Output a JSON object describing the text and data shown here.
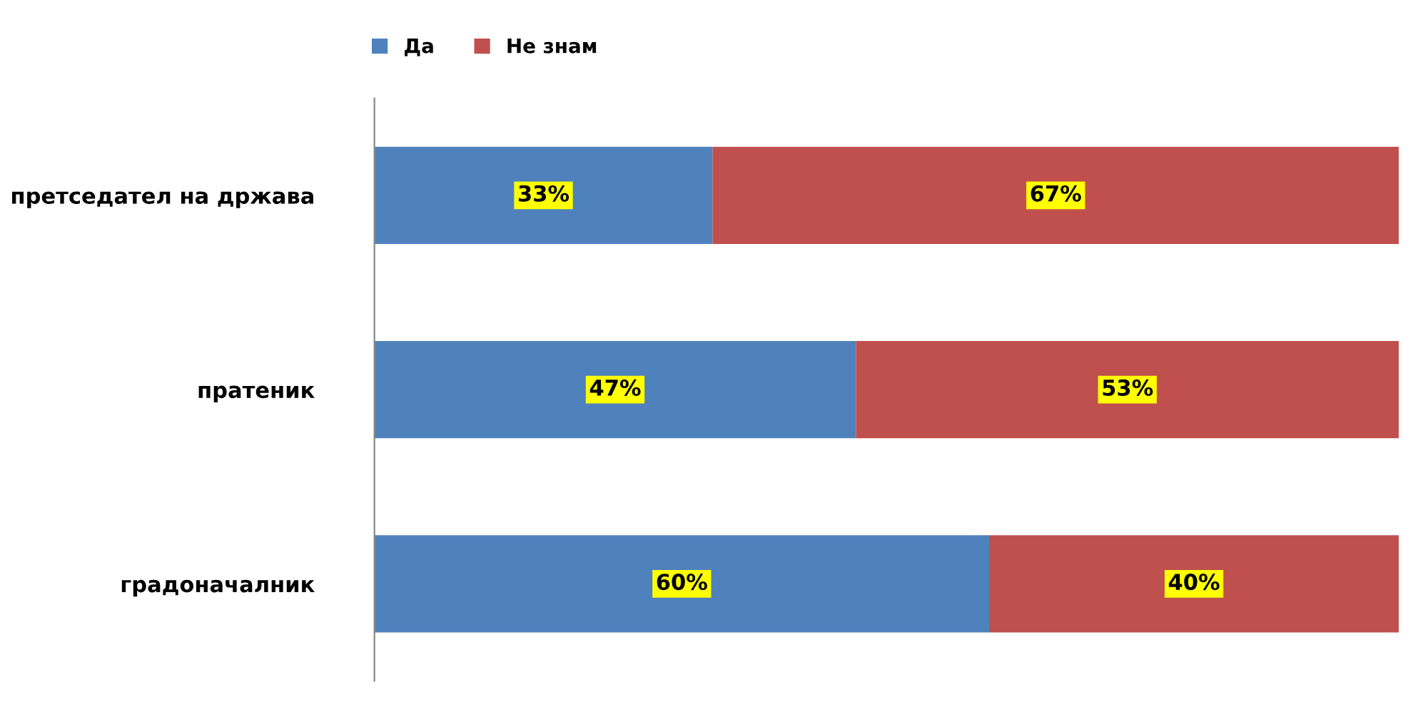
{
  "chart_data": {
    "type": "bar",
    "orientation": "horizontal",
    "stacked": true,
    "categories": [
      "претседател на држава",
      "пратеник",
      "градоначалник"
    ],
    "series": [
      {
        "name": "Да",
        "color": "#4f81bd",
        "values": [
          33,
          47,
          60
        ],
        "value_labels": [
          "33%",
          "47%",
          "60%"
        ]
      },
      {
        "name": "Не знам",
        "color": "#c0504d",
        "values": [
          67,
          53,
          40
        ],
        "value_labels": [
          "67%",
          "53%",
          "40%"
        ]
      }
    ],
    "tick_labels": "y",
    "grid": false,
    "legend": "top left"
  }
}
